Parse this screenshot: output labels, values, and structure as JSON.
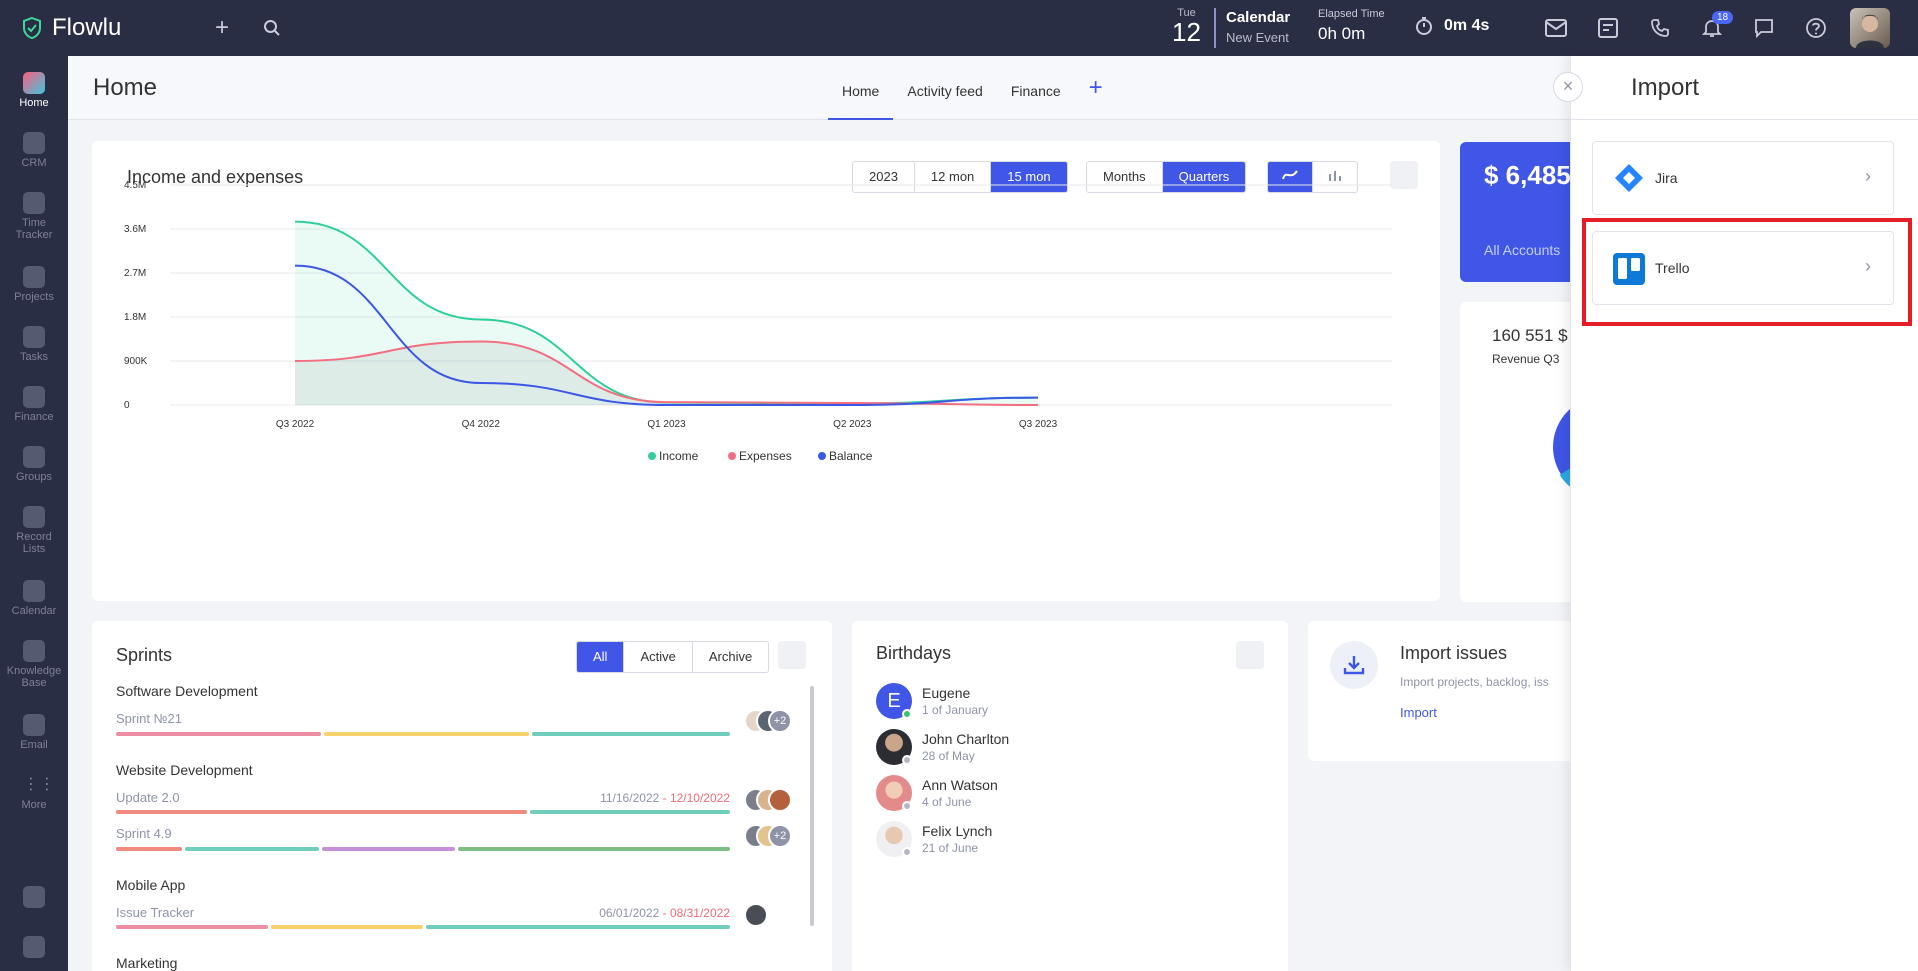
{
  "topbar": {
    "logo_text": "Flowlu",
    "calendar": {
      "day_of_week": "Tue",
      "day_number": "12",
      "title": "Calendar",
      "subtitle": "New Event"
    },
    "elapsed": {
      "label": "Elapsed Time",
      "value": "0h 0m"
    },
    "timer": "0m 4s",
    "notifications_count": "18"
  },
  "sidebar": {
    "items": [
      {
        "label": "Home"
      },
      {
        "label": "CRM"
      },
      {
        "label": "Time Tracker"
      },
      {
        "label": "Projects"
      },
      {
        "label": "Tasks"
      },
      {
        "label": "Finance"
      },
      {
        "label": "Groups"
      },
      {
        "label": "Record Lists"
      },
      {
        "label": "Calendar"
      },
      {
        "label": "Knowledge Base"
      },
      {
        "label": "Email"
      },
      {
        "label": "More"
      }
    ]
  },
  "header": {
    "title": "Home",
    "tabs": [
      {
        "label": "Home"
      },
      {
        "label": "Activity feed"
      },
      {
        "label": "Finance"
      }
    ],
    "add_tab": "+"
  },
  "income": {
    "title": "Income and expenses",
    "period_buttons": [
      "2023",
      "12 mon",
      "15 mon"
    ],
    "grouping_buttons": [
      "Months",
      "Quarters"
    ],
    "legend": [
      "Income",
      "Expenses",
      "Balance"
    ]
  },
  "chart_data": {
    "type": "area",
    "categories": [
      "Q3 2022",
      "Q4 2022",
      "Q1 2023",
      "Q2 2023",
      "Q3 2023"
    ],
    "y_ticks": [
      "0",
      "900K",
      "1.8M",
      "2.7M",
      "3.6M",
      "4.5M"
    ],
    "ylim": [
      0,
      4500000
    ],
    "series": [
      {
        "name": "Income",
        "color": "#2fcf9a",
        "values": [
          3750000,
          1750000,
          50000,
          30000,
          150000
        ]
      },
      {
        "name": "Expenses",
        "color": "#f36f80",
        "values": [
          900000,
          1300000,
          60000,
          40000,
          0
        ]
      },
      {
        "name": "Balance",
        "color": "#3b57e6",
        "values": [
          2850000,
          450000,
          0,
          0,
          150000
        ]
      }
    ],
    "grid": true,
    "legend_position": "bottom"
  },
  "accounts": {
    "amount": "$ 6,485",
    "label": "All Accounts"
  },
  "revenue": {
    "value": "160 551 $",
    "label": "Revenue Q3"
  },
  "sprints": {
    "title": "Sprints",
    "filters": [
      "All",
      "Active",
      "Archive"
    ],
    "projects": [
      {
        "name": "Software Development",
        "sprints": [
          {
            "name": "Sprint №21",
            "start": "",
            "end": "",
            "extra": "+2"
          }
        ]
      },
      {
        "name": "Website Development",
        "sprints": [
          {
            "name": "Update 2.0",
            "start": "11/16/2022",
            "end": "12/10/2022",
            "extra": ""
          },
          {
            "name": "Sprint 4.9",
            "start": "",
            "end": "",
            "extra": "+2"
          }
        ]
      },
      {
        "name": "Mobile App",
        "sprints": [
          {
            "name": "Issue Tracker",
            "start": "06/01/2022",
            "end": "08/31/2022",
            "extra": ""
          }
        ]
      },
      {
        "name": "Marketing",
        "sprints": []
      }
    ],
    "date_separator": " - "
  },
  "birthdays": {
    "title": "Birthdays",
    "people": [
      {
        "name": "Eugene",
        "date": "1 of January",
        "initial": "E"
      },
      {
        "name": "John Charlton",
        "date": "28 of May",
        "initial": ""
      },
      {
        "name": "Ann Watson",
        "date": "4 of June",
        "initial": ""
      },
      {
        "name": "Felix Lynch",
        "date": "21 of June",
        "initial": ""
      }
    ]
  },
  "import_issues": {
    "title": "Import issues",
    "description": "Import projects, backlog, iss",
    "link": "Import"
  },
  "import_panel": {
    "title": "Import",
    "close": "×",
    "items": [
      {
        "name": "Jira"
      },
      {
        "name": "Trello"
      }
    ]
  }
}
